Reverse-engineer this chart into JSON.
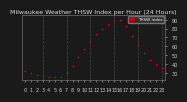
{
  "title": "Milwaukee Weather THSW Index per Hour (24 Hours)",
  "hours": [
    0,
    1,
    2,
    3,
    4,
    5,
    6,
    7,
    8,
    9,
    10,
    11,
    12,
    13,
    14,
    15,
    16,
    17,
    18,
    19,
    20,
    21,
    22,
    23
  ],
  "values": [
    32,
    30,
    28,
    27,
    26,
    25,
    26,
    30,
    38,
    48,
    57,
    66,
    74,
    80,
    85,
    88,
    90,
    83,
    72,
    62,
    52,
    45,
    40,
    36
  ],
  "ylim": [
    22,
    95
  ],
  "yticks_right": [
    30,
    40,
    50,
    60,
    70,
    80,
    90
  ],
  "background_color": "#1a1a1a",
  "plot_bg": "#1a1a1a",
  "marker_color": "#ff0000",
  "grid_color": "#555555",
  "title_color": "#dddddd",
  "tick_color": "#cccccc",
  "title_fontsize": 4.5,
  "tick_fontsize": 3.5,
  "legend_label": "THSW Index",
  "legend_color": "#cc0000",
  "legend_text_color": "#ffffff",
  "grid_hours": [
    3,
    7,
    11,
    15,
    19,
    23
  ],
  "xtick_labels": [
    "0",
    "1",
    "2",
    "3",
    "5",
    "7",
    "9",
    "11",
    "1",
    "3",
    "5",
    "7",
    "1",
    "3",
    "5",
    "7",
    "9",
    "1",
    "3",
    "5"
  ]
}
